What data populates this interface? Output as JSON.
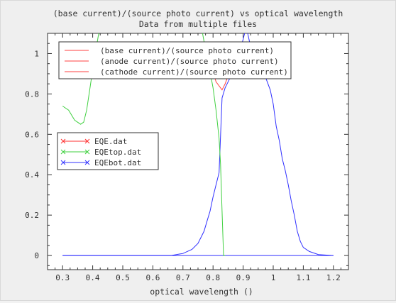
{
  "chart_data": {
    "type": "line",
    "title": "(base current)/(source photo current) vs optical wavelength",
    "subtitle": "Data from multiple files",
    "xlabel": "optical wavelength ()",
    "ylabel": "",
    "xlim": [
      0.25,
      1.25
    ],
    "ylim": [
      -0.07,
      1.1
    ],
    "xticks": [
      "0.3",
      "0.4",
      "0.5",
      "0.6",
      "0.7",
      "0.8",
      "0.9",
      "1",
      "1.1",
      "1.2"
    ],
    "yticks": [
      "0",
      "0.2",
      "0.4",
      "0.6",
      "0.8",
      "1"
    ],
    "grid": false,
    "legends": [
      {
        "placement": "top-center",
        "entries": [
          {
            "label": "(base current)/(source photo current)",
            "color": "#ff4040",
            "marker": "none"
          },
          {
            "label": "(anode current)/(source photo current)",
            "color": "#ff4040",
            "marker": "none"
          },
          {
            "label": "(cathode current)/(source photo current)",
            "color": "#ff4040",
            "marker": "none"
          }
        ]
      },
      {
        "placement": "middle-left",
        "entries": [
          {
            "label": "EQE.dat",
            "color": "#ff3030",
            "marker": "x"
          },
          {
            "label": "EQEtop.dat",
            "color": "#40d040",
            "marker": "x"
          },
          {
            "label": "EQEbot.dat",
            "color": "#3030ff",
            "marker": "x"
          }
        ]
      }
    ],
    "series": [
      {
        "color": "#3030ff",
        "x": [
          0.3,
          0.66,
          0.7,
          0.73,
          0.75,
          0.77,
          0.78,
          0.79,
          0.8,
          0.81,
          0.82,
          0.83,
          0.84,
          0.85,
          0.86,
          0.87,
          0.88,
          0.89,
          0.9,
          0.905
        ],
        "y": [
          0,
          0,
          0.01,
          0.03,
          0.06,
          0.12,
          0.17,
          0.22,
          0.29,
          0.35,
          0.41,
          0.78,
          0.83,
          0.86,
          0.89,
          0.93,
          0.97,
          1.02,
          1.07,
          1.1
        ]
      },
      {
        "color": "#3030ff",
        "x": [
          0.915,
          0.93,
          0.95,
          0.97,
          0.99,
          1.0,
          1.01,
          1.02,
          1.03,
          1.04,
          1.05,
          1.06,
          1.07,
          1.08,
          1.09,
          1.1,
          1.12,
          1.15,
          1.2
        ],
        "y": [
          1.1,
          1.0,
          0.93,
          0.9,
          0.82,
          0.75,
          0.64,
          0.57,
          0.48,
          0.42,
          0.35,
          0.27,
          0.2,
          0.12,
          0.07,
          0.04,
          0.02,
          0.005,
          0
        ]
      },
      {
        "color": "#3030ff",
        "x": [
          0.3,
          1.2
        ],
        "y": [
          0,
          0
        ]
      },
      {
        "color": "#40d040",
        "x": [
          0.3,
          0.32,
          0.34,
          0.36,
          0.37,
          0.38,
          0.39,
          0.4,
          0.41,
          0.42
        ],
        "y": [
          0.74,
          0.72,
          0.67,
          0.65,
          0.66,
          0.72,
          0.82,
          0.92,
          1.01,
          1.1
        ]
      },
      {
        "color": "#40d040",
        "x": [
          0.765,
          0.78,
          0.79,
          0.8,
          0.81,
          0.82,
          0.825,
          0.83,
          0.835,
          0.84
        ],
        "y": [
          1.1,
          0.98,
          0.91,
          0.83,
          0.72,
          0.58,
          0.45,
          0.22,
          0,
          0
        ]
      },
      {
        "color": "#ff4040",
        "x": [
          0.8,
          0.81,
          0.82,
          0.83,
          0.84,
          0.85,
          0.86
        ],
        "y": [
          0.91,
          0.86,
          0.84,
          0.82,
          0.85,
          0.89,
          0.93
        ]
      }
    ]
  }
}
